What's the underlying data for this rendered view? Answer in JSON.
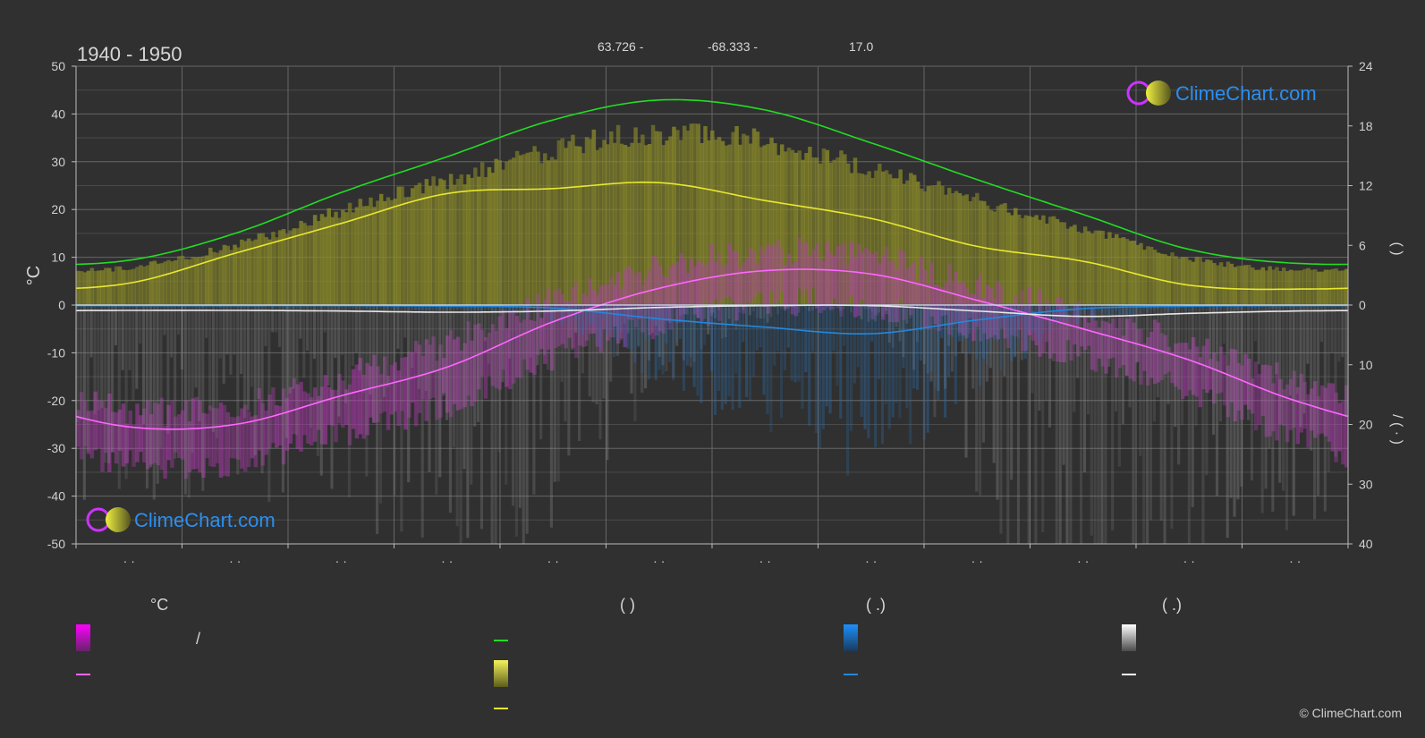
{
  "header": {
    "period": "1940 - 1950",
    "coord_lat": "63.726 -",
    "coord_lon": "-68.333 -",
    "elevation": "17.0"
  },
  "watermark": {
    "text": "ClimeChart.com",
    "copyright": "© ClimeChart.com"
  },
  "left_axis": {
    "unit": "°C",
    "ticks": [
      "50",
      "40",
      "30",
      "20",
      "10",
      "0",
      "-10",
      "-20",
      "-30",
      "-40",
      "-50"
    ]
  },
  "right_axis": {
    "upper_ticks": [
      "24",
      "18",
      "12",
      "6",
      "0"
    ],
    "lower_ticks": [
      "10",
      "20",
      "30",
      "40"
    ],
    "upper_label": "(   )",
    "lower_label": "/  (  ·  )"
  },
  "x_axis": {
    "month_labels": [
      "· ·",
      "· ·",
      "· ·",
      "· ·",
      "· ·",
      "· ·",
      "· ·",
      "· ·",
      "· ·",
      "· ·",
      "· ·",
      "· ·"
    ]
  },
  "legend": {
    "col1_header": "°C",
    "col1_range_label": "/",
    "col2_header": "(          )",
    "col3_header": "(   .)",
    "col4_header": "(   .)"
  },
  "colors": {
    "background": "#303030",
    "grid": "#5a5a5a",
    "daylight": "#22dd22",
    "sunshine": "#e8e830",
    "temp_mean": "#ff66ff",
    "temp_band": "#cc22cc",
    "precip": "#2288dd",
    "snow": "#dddddd",
    "brand": "#2b8ff0"
  },
  "chart_data": {
    "type": "line",
    "title": "1940 - 1950",
    "ylabel": "°C",
    "ylim": [
      -50,
      50
    ],
    "y2_upper_lim": [
      0,
      24
    ],
    "y2_lower_lim": [
      0,
      40
    ],
    "x": [
      1,
      2,
      3,
      4,
      5,
      6,
      7,
      8,
      9,
      10,
      11,
      12
    ],
    "series": [
      {
        "key": "daylight_hours",
        "axis": "right_upper",
        "values": [
          4.5,
          7.2,
          11.3,
          14.9,
          18.6,
          20.6,
          19.6,
          16.3,
          12.6,
          9.1,
          5.6,
          4.2
        ]
      },
      {
        "key": "sunshine_hours",
        "axis": "right_upper",
        "values": [
          2.2,
          5.2,
          8.2,
          11.2,
          11.7,
          12.3,
          10.5,
          8.7,
          5.9,
          4.4,
          2.0,
          1.6
        ]
      },
      {
        "key": "temp_mean",
        "axis": "left",
        "values": [
          -25.5,
          -25.0,
          -19.0,
          -13.0,
          -3.5,
          3.5,
          7.2,
          6.5,
          1.0,
          -5.0,
          -11.5,
          -20.0
        ]
      },
      {
        "key": "temp_max",
        "axis": "left",
        "values": [
          -22,
          -21,
          -15,
          -8,
          1,
          8,
          11,
          10,
          4,
          -2,
          -8,
          -16
        ]
      },
      {
        "key": "temp_min",
        "axis": "left",
        "values": [
          -30,
          -30,
          -24,
          -18,
          -8,
          -1,
          3,
          3,
          -2,
          -8,
          -15,
          -25
        ]
      },
      {
        "key": "precipitation_mm",
        "axis": "right_lower",
        "values": [
          0.1,
          0.1,
          0.1,
          0.2,
          0.5,
          2.3,
          3.7,
          4.8,
          2.5,
          0.6,
          0.2,
          0.1
        ]
      },
      {
        "key": "snow_mm",
        "axis": "right_lower",
        "values": [
          0.9,
          0.9,
          1.0,
          1.2,
          1.0,
          0.4,
          0.1,
          0.1,
          1.0,
          1.9,
          1.4,
          1.0
        ]
      }
    ]
  }
}
